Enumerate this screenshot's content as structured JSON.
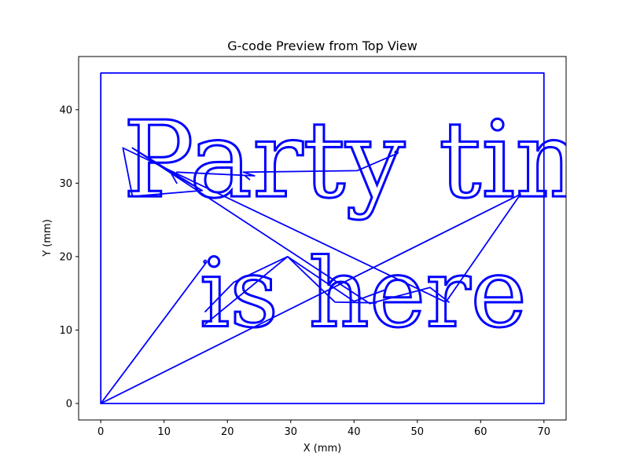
{
  "chart_data": {
    "type": "line",
    "title": "G-code Preview from Top View",
    "xlabel": "X (mm)",
    "ylabel": "Y (mm)",
    "xlim": [
      -3.5,
      73.5
    ],
    "ylim": [
      -2.25,
      47.25
    ],
    "xticks": [
      0,
      10,
      20,
      30,
      40,
      50,
      60,
      70
    ],
    "yticks": [
      0,
      10,
      20,
      30,
      40
    ],
    "grid": false,
    "line_color": "#0000ff",
    "text_lines": [
      {
        "text": "Party time",
        "x": 3.5,
        "y": 28.2,
        "cap_height": 10.5
      },
      {
        "text": "is here",
        "x": 15.6,
        "y": 10.5,
        "cap_height": 9.4
      }
    ],
    "series": [
      {
        "x": [
          0,
          70,
          70,
          0,
          0
        ],
        "y": [
          0,
          0,
          45,
          45,
          0
        ]
      },
      {
        "x": [
          0,
          16.5,
          16.5
        ],
        "y": [
          0,
          19,
          19.3
        ]
      },
      {
        "x": [
          0,
          66.3,
          54.5,
          3.5
        ],
        "y": [
          0,
          28.5,
          13.8,
          34.8
        ]
      },
      {
        "x": [
          3.5,
          5,
          16,
          5
        ],
        "y": [
          34.8,
          28.2,
          29,
          34.8
        ]
      },
      {
        "x": [
          5,
          42.5,
          52,
          55
        ],
        "y": [
          34.8,
          13.6,
          15.8,
          13.8
        ]
      },
      {
        "x": [
          16,
          11,
          12
        ],
        "y": [
          29,
          31.5,
          30
        ]
      },
      {
        "x": [
          12,
          24.3,
          22.5,
          40.5,
          46.7,
          46.7
        ],
        "y": [
          31.5,
          31,
          31.5,
          31.7,
          34,
          34.2
        ]
      },
      {
        "x": [
          16.5,
          21,
          29.5,
          37,
          43.5
        ],
        "y": [
          12.5,
          16.5,
          20,
          13.8,
          13.7
        ]
      },
      {
        "x": [
          16.5,
          29.5,
          40,
          45
        ],
        "y": [
          10.8,
          20,
          13.9,
          15.5
        ]
      },
      {
        "x": [
          22.8,
          23.5
        ],
        "y": [
          31,
          30.5
        ]
      }
    ]
  }
}
